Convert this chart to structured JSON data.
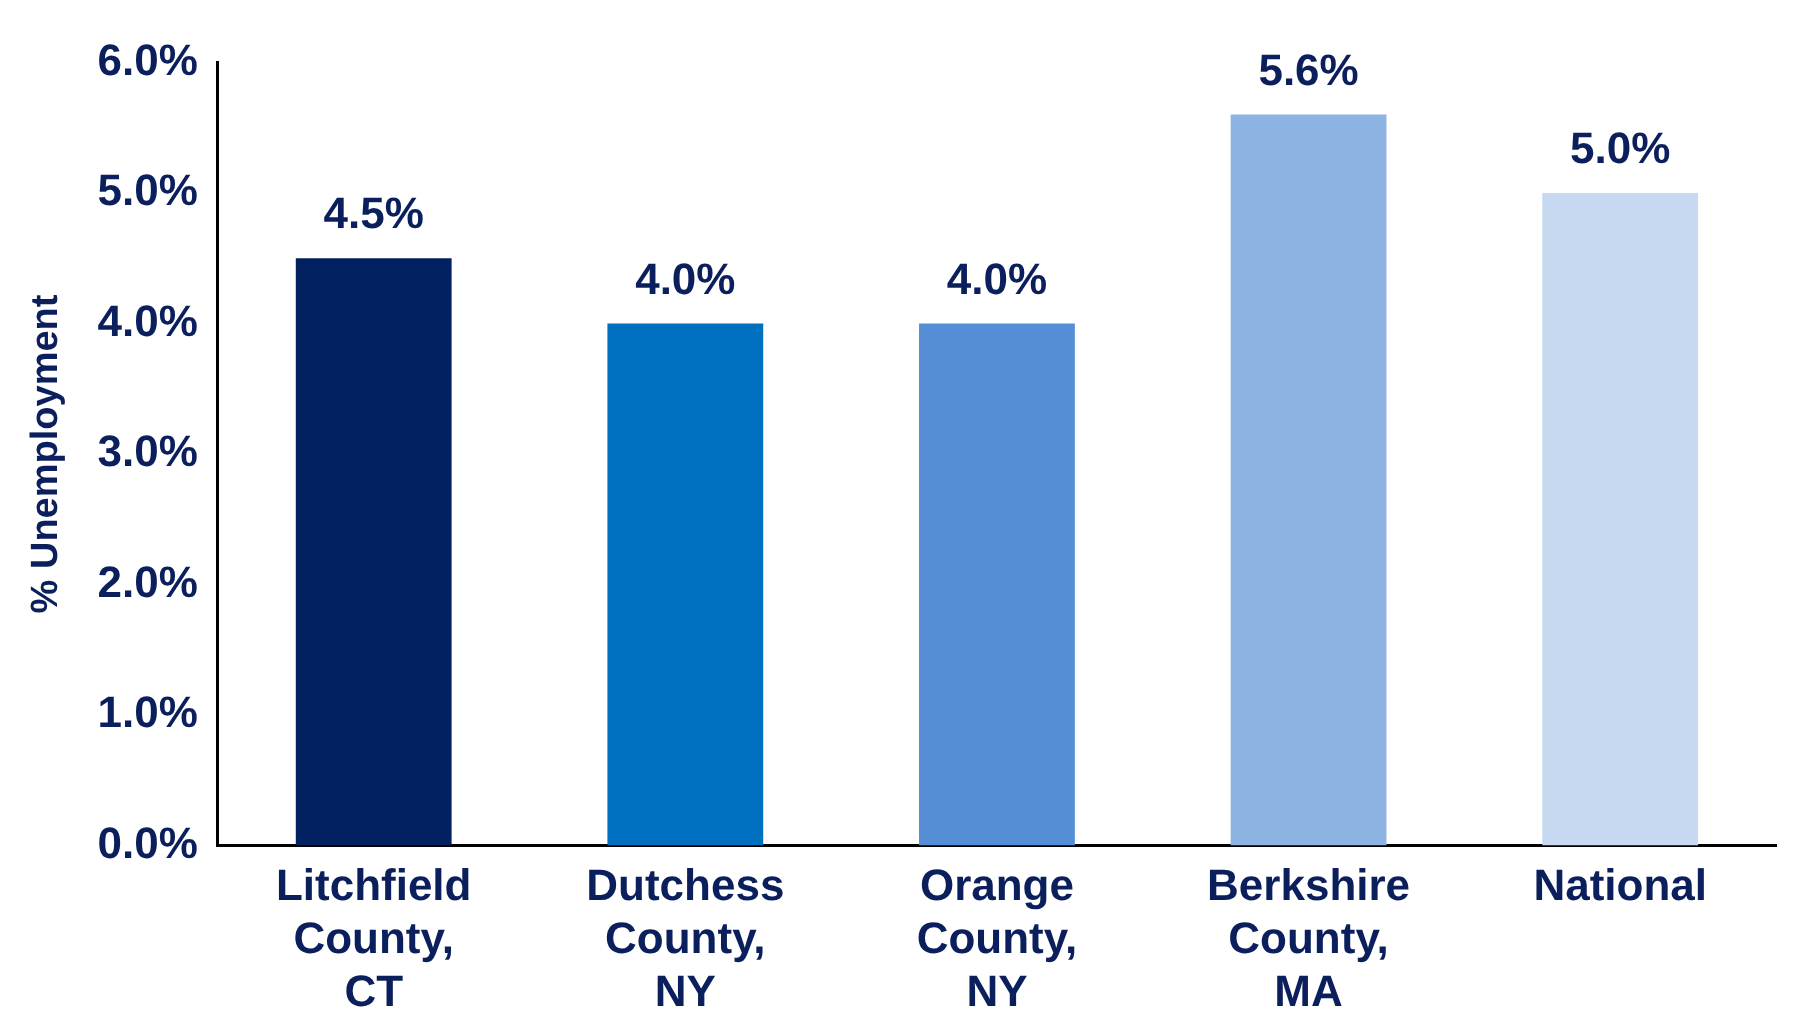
{
  "chart_data": {
    "type": "bar",
    "ylabel": "% Unemployment",
    "categories": [
      "Litchfield County, CT",
      "Dutchess County, NY",
      "Orange County, NY",
      "Berkshire County, MA",
      "National"
    ],
    "values": [
      4.5,
      4.0,
      4.0,
      5.6,
      5.0
    ],
    "colors": [
      "#002060",
      "#0070c0",
      "#558ed5",
      "#8db3e2",
      "#c6d9f1"
    ],
    "value_labels": [
      "4.5%",
      "4.0%",
      "4.0%",
      "5.6%",
      "5.0%"
    ],
    "ylim": [
      0,
      6
    ],
    "yticks": [
      {
        "value": 0,
        "label": "0.0%"
      },
      {
        "value": 1,
        "label": "1.0%"
      },
      {
        "value": 2,
        "label": "2.0%"
      },
      {
        "value": 3,
        "label": "3.0%"
      },
      {
        "value": 4,
        "label": "4.0%"
      },
      {
        "value": 5,
        "label": "5.0%"
      },
      {
        "value": 6,
        "label": "6.0%"
      }
    ],
    "grid": false,
    "legend": false
  }
}
